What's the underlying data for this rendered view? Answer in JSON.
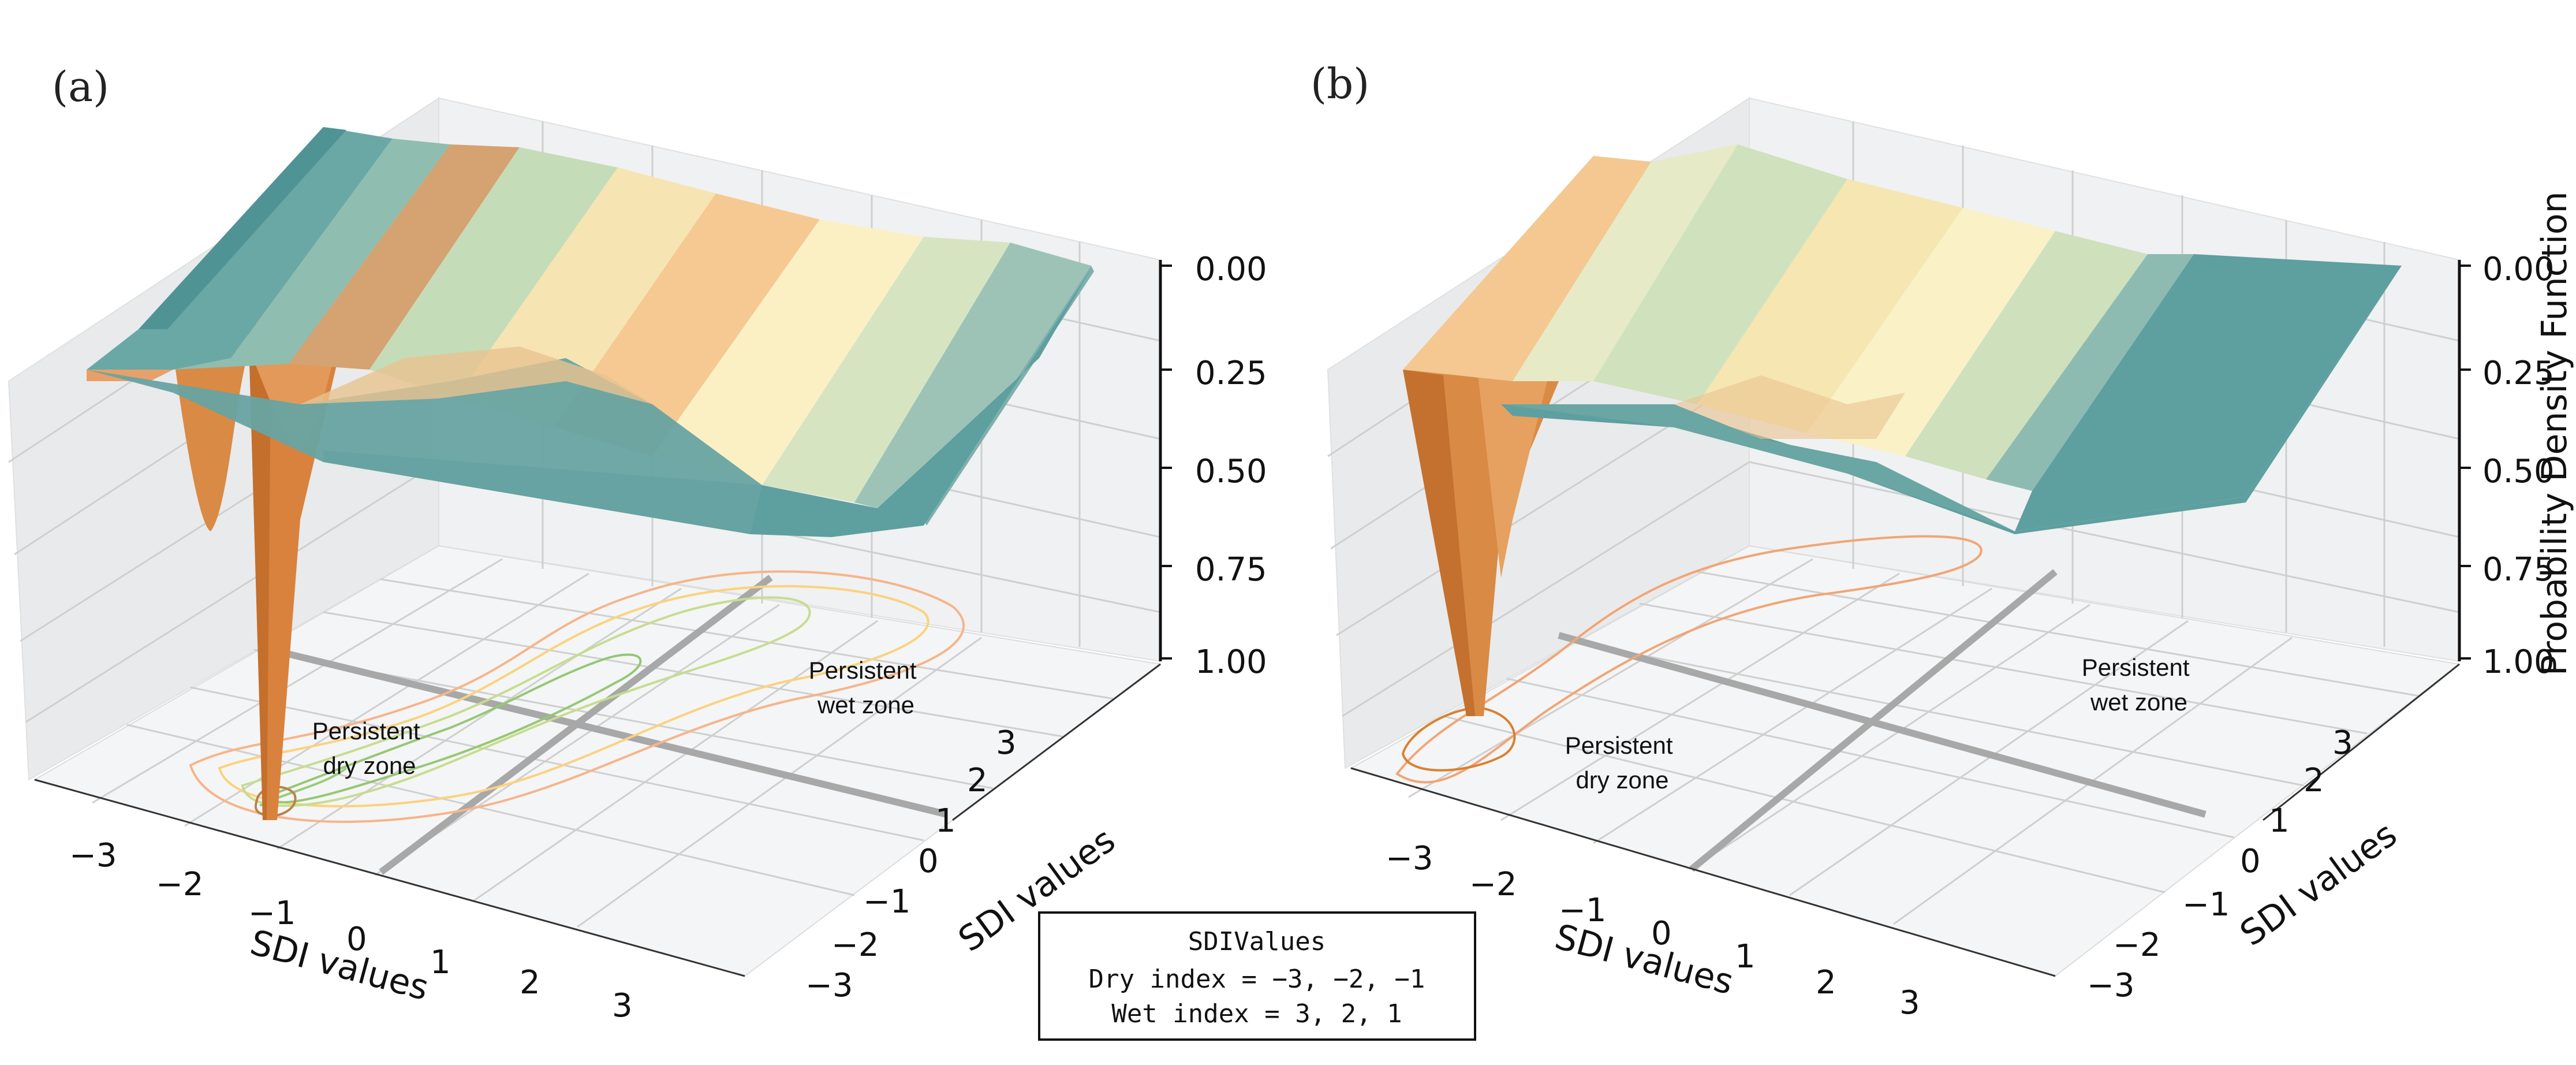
{
  "chart_data": [
    {
      "type": "surface3d",
      "panel": "(a)",
      "xlabel": "SDI values",
      "ylabel": "SDI values",
      "zlabel": "",
      "x_ticks": [
        "−3",
        "−2",
        "−1",
        "0",
        "1",
        "2",
        "3"
      ],
      "y_ticks": [
        "−3",
        "−2",
        "−1",
        "0",
        "1",
        "2",
        "3"
      ],
      "z_ticks": [
        "0.00",
        "0.25",
        "0.50",
        "0.75",
        "1.00"
      ],
      "xlim": [
        -3.5,
        3.5
      ],
      "ylim": [
        -3.5,
        3.5
      ],
      "zlim": [
        0,
        1
      ],
      "z_axis_inverted": true,
      "colormap": [
        "#d9813a",
        "#efb27a",
        "#f7d9a1",
        "#fdf1c0",
        "#d9e4bd",
        "#a5c9b0",
        "#5e9fa0"
      ],
      "peak": {
        "x": -1,
        "y": -3,
        "z": 1.0
      },
      "annotations": [
        "Persistent\ndry zone",
        "Persistent\nwet zone"
      ],
      "contours": [
        "#f1a576",
        "#f6c17a",
        "#fbdb8a",
        "#c1dc8c",
        "#98c776",
        "#b9824a"
      ]
    },
    {
      "type": "surface3d",
      "panel": "(b)",
      "xlabel": "SDI values",
      "ylabel": "SDI values",
      "zlabel": "Probability Density Function",
      "x_ticks": [
        "−3",
        "−2",
        "−1",
        "0",
        "1",
        "2",
        "3"
      ],
      "y_ticks": [
        "−3",
        "−2",
        "−1",
        "0",
        "1",
        "2",
        "3"
      ],
      "z_ticks": [
        "0.00",
        "0.25",
        "0.50",
        "0.75",
        "1.00"
      ],
      "xlim": [
        -3.5,
        3.5
      ],
      "ylim": [
        -3.5,
        3.5
      ],
      "zlim": [
        0,
        1
      ],
      "z_axis_inverted": true,
      "colormap": [
        "#d9813a",
        "#efb27a",
        "#f7d9a1",
        "#fdf1c0",
        "#d9e4bd",
        "#a5c9b0",
        "#5e9fa0"
      ],
      "peak": {
        "x": -3,
        "y": -3,
        "z": 0.93
      },
      "annotations": [
        "Persistent\ndry zone",
        "Persistent\nwet zone"
      ],
      "contours": [
        "#f1a576",
        "#d9812f"
      ]
    }
  ],
  "legend": {
    "title": "SDIValues",
    "line1": "Dry index = −3, −2, −1",
    "line2": "Wet index = 3, 2, 1"
  },
  "panels": {
    "a": {
      "tag": "(a)",
      "x_title": "SDI values",
      "y_title": "SDI values",
      "dry_l1": "Persistent",
      "dry_l2": "dry zone",
      "wet_l1": "Persistent",
      "wet_l2": "wet zone"
    },
    "b": {
      "tag": "(b)",
      "x_title": "SDI values",
      "y_title": "SDI values",
      "z_title": "Probability Density Function",
      "dry_l1": "Persistent",
      "dry_l2": "dry zone",
      "wet_l1": "Persistent",
      "wet_l2": "wet zone"
    }
  }
}
